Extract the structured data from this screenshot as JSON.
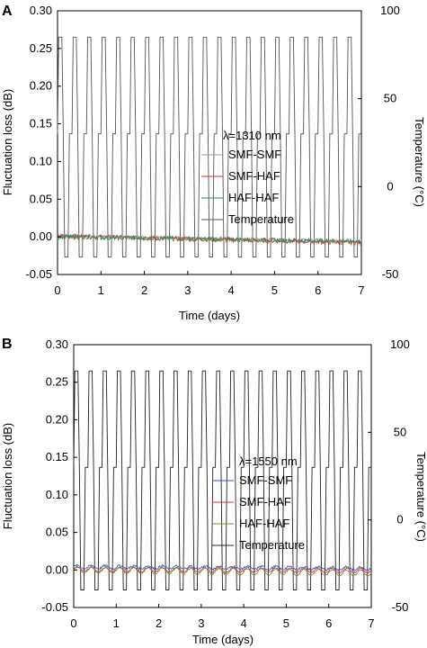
{
  "chart_data": [
    {
      "type": "line",
      "panel_label": "A",
      "annotation": "λ=1310 nm",
      "xlabel": "Time (days)",
      "ylabel": "Fluctuation loss (dB)",
      "y2label": "Temperature (°C)",
      "xlim": [
        0,
        7
      ],
      "ylim": [
        -0.05,
        0.3
      ],
      "y2lim": [
        -50,
        100
      ],
      "xticks": [
        "0",
        "1",
        "2",
        "3",
        "4",
        "5",
        "6",
        "7"
      ],
      "yticks": [
        "0.30",
        "0.25",
        "0.20",
        "0.15",
        "0.10",
        "0.05",
        "0.00",
        "-0.05"
      ],
      "y2ticks": [
        "100",
        "50",
        "0",
        "-50"
      ],
      "legend": [
        "SMF-SMF",
        "SMF-HAF",
        "HAF-HAF",
        "Temperature"
      ],
      "temperature_cycle": {
        "cycles_per_day": 3,
        "min": -40,
        "max": 85
      },
      "series": [
        {
          "name": "SMF-SMF",
          "color": "#9a9a9a",
          "start": 0.002,
          "end": -0.006,
          "noise": 0.002,
          "ripple": 0.0
        },
        {
          "name": "SMF-HAF",
          "color": "#e03030",
          "start": 0.001,
          "end": -0.008,
          "noise": 0.003,
          "ripple": 0.0
        },
        {
          "name": "HAF-HAF",
          "color": "#2e8b57",
          "start": 0.0,
          "end": -0.006,
          "noise": 0.003,
          "ripple": 0.0
        },
        {
          "name": "Temperature",
          "color": "#555555"
        }
      ]
    },
    {
      "type": "line",
      "panel_label": "B",
      "annotation": "λ=1550 nm",
      "xlabel": "Time (days)",
      "ylabel": "Fluctuation loss (dB)",
      "y2label": "Temperature (°C)",
      "xlim": [
        0,
        7
      ],
      "ylim": [
        -0.05,
        0.3
      ],
      "y2lim": [
        -50,
        100
      ],
      "xticks": [
        "0",
        "1",
        "2",
        "3",
        "4",
        "5",
        "6",
        "7"
      ],
      "yticks": [
        "0.30",
        "0.25",
        "0.20",
        "0.15",
        "0.10",
        "0.05",
        "0.00",
        "-0.05"
      ],
      "y2ticks": [
        "100",
        "50",
        "0",
        "-50"
      ],
      "legend": [
        "SMF-SMF",
        "SMF-HAF",
        "HAF-HAF",
        "Temperature"
      ],
      "temperature_cycle": {
        "cycles_per_day": 3,
        "min": -40,
        "max": 85
      },
      "series": [
        {
          "name": "SMF-SMF",
          "color": "#3b4cc0",
          "start": 0.004,
          "end": 0.002,
          "noise": 0.0015,
          "ripple": 0.002
        },
        {
          "name": "SMF-HAF",
          "color": "#e03030",
          "start": 0.001,
          "end": -0.001,
          "noise": 0.001,
          "ripple": 0.003
        },
        {
          "name": "HAF-HAF",
          "color": "#6b8e23",
          "start": 0.0,
          "end": -0.004,
          "noise": 0.001,
          "ripple": 0.004
        },
        {
          "name": "Temperature",
          "color": "#222222"
        }
      ]
    }
  ]
}
